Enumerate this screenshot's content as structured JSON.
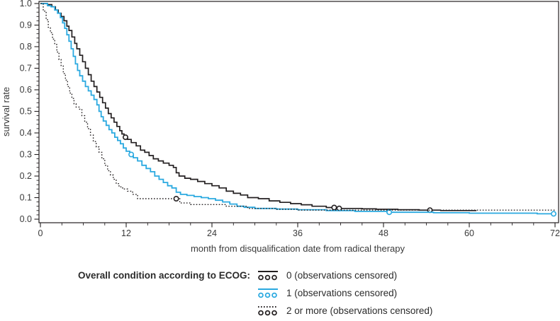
{
  "chart_data": {
    "type": "line",
    "subtype": "kaplan-meier-step",
    "title": "",
    "xlabel": "month from disqualification date from radical therapy",
    "ylabel": "survival rate",
    "xlim": [
      0,
      72
    ],
    "ylim": [
      0.0,
      1.0
    ],
    "x_ticks": [
      0,
      12,
      24,
      36,
      48,
      60,
      72
    ],
    "x_minor_step": 3,
    "y_ticks": [
      "1.0",
      "0.9",
      "0.8",
      "0.7",
      "0.6",
      "0.5",
      "0.4",
      "0.3",
      "0.2",
      "0.1",
      "0.0"
    ],
    "y_minor_step": 0.02,
    "grid": false,
    "legend_position": "bottom",
    "axis_color": "#231f20",
    "series": [
      {
        "id": "ecog-0",
        "name": "0",
        "color": "#231f20",
        "dash": "solid",
        "width": 1.7,
        "points": [
          [
            0,
            1.0
          ],
          [
            1.0,
            0.995
          ],
          [
            1.6,
            0.985
          ],
          [
            2.1,
            0.97
          ],
          [
            2.5,
            0.955
          ],
          [
            2.9,
            0.94
          ],
          [
            3.3,
            0.92
          ],
          [
            3.7,
            0.895
          ],
          [
            4.0,
            0.875
          ],
          [
            4.4,
            0.845
          ],
          [
            4.8,
            0.815
          ],
          [
            5.1,
            0.79
          ],
          [
            5.5,
            0.76
          ],
          [
            5.9,
            0.73
          ],
          [
            6.3,
            0.7
          ],
          [
            6.7,
            0.67
          ],
          [
            7.1,
            0.64
          ],
          [
            7.5,
            0.615
          ],
          [
            7.9,
            0.59
          ],
          [
            8.3,
            0.565
          ],
          [
            8.7,
            0.54
          ],
          [
            9.1,
            0.515
          ],
          [
            9.5,
            0.49
          ],
          [
            9.9,
            0.47
          ],
          [
            10.3,
            0.45
          ],
          [
            10.7,
            0.43
          ],
          [
            11.1,
            0.41
          ],
          [
            11.4,
            0.395
          ],
          [
            11.7,
            0.38
          ],
          [
            12.2,
            0.37
          ],
          [
            12.7,
            0.355
          ],
          [
            13.4,
            0.34
          ],
          [
            14.0,
            0.32
          ],
          [
            14.6,
            0.31
          ],
          [
            15.2,
            0.295
          ],
          [
            15.8,
            0.28
          ],
          [
            16.5,
            0.27
          ],
          [
            17.2,
            0.26
          ],
          [
            18.0,
            0.25
          ],
          [
            18.6,
            0.24
          ],
          [
            19.0,
            0.215
          ],
          [
            19.4,
            0.2
          ],
          [
            20.2,
            0.19
          ],
          [
            21.0,
            0.185
          ],
          [
            22.0,
            0.175
          ],
          [
            23.0,
            0.165
          ],
          [
            24.0,
            0.155
          ],
          [
            25.0,
            0.145
          ],
          [
            26.0,
            0.13
          ],
          [
            27.0,
            0.12
          ],
          [
            28.0,
            0.112
          ],
          [
            29.0,
            0.1
          ],
          [
            30.5,
            0.095
          ],
          [
            32.0,
            0.085
          ],
          [
            33.5,
            0.078
          ],
          [
            35.0,
            0.072
          ],
          [
            36.5,
            0.067
          ],
          [
            38.0,
            0.06
          ],
          [
            40.0,
            0.054
          ],
          [
            41.5,
            0.05
          ],
          [
            45.0,
            0.048
          ],
          [
            47.0,
            0.046
          ],
          [
            50.0,
            0.044
          ],
          [
            53.0,
            0.042
          ],
          [
            56.0,
            0.04
          ],
          [
            61.0,
            0.04
          ]
        ],
        "censored": [
          [
            11.9,
            0.38
          ],
          [
            41.1,
            0.054
          ],
          [
            41.8,
            0.05
          ],
          [
            54.5,
            0.042
          ]
        ]
      },
      {
        "id": "ecog-1",
        "name": "1",
        "color": "#2aa9e0",
        "dash": "solid",
        "width": 1.8,
        "points": [
          [
            0,
            1.0
          ],
          [
            1.0,
            0.99
          ],
          [
            1.5,
            0.985
          ],
          [
            2.0,
            0.97
          ],
          [
            2.4,
            0.955
          ],
          [
            2.8,
            0.935
          ],
          [
            3.1,
            0.91
          ],
          [
            3.4,
            0.885
          ],
          [
            3.7,
            0.855
          ],
          [
            4.0,
            0.825
          ],
          [
            4.3,
            0.79
          ],
          [
            4.6,
            0.755
          ],
          [
            4.9,
            0.72
          ],
          [
            5.2,
            0.69
          ],
          [
            5.5,
            0.665
          ],
          [
            5.9,
            0.64
          ],
          [
            6.3,
            0.615
          ],
          [
            6.7,
            0.595
          ],
          [
            7.1,
            0.575
          ],
          [
            7.5,
            0.555
          ],
          [
            7.9,
            0.53
          ],
          [
            8.2,
            0.5
          ],
          [
            8.5,
            0.475
          ],
          [
            8.8,
            0.455
          ],
          [
            9.2,
            0.435
          ],
          [
            9.6,
            0.415
          ],
          [
            10.0,
            0.4
          ],
          [
            10.4,
            0.38
          ],
          [
            10.8,
            0.365
          ],
          [
            11.2,
            0.35
          ],
          [
            11.6,
            0.33
          ],
          [
            12.0,
            0.315
          ],
          [
            12.5,
            0.3
          ],
          [
            13.0,
            0.285
          ],
          [
            13.6,
            0.27
          ],
          [
            14.2,
            0.25
          ],
          [
            14.8,
            0.235
          ],
          [
            15.4,
            0.22
          ],
          [
            16.0,
            0.2
          ],
          [
            16.6,
            0.185
          ],
          [
            17.2,
            0.17
          ],
          [
            17.8,
            0.155
          ],
          [
            18.4,
            0.145
          ],
          [
            19.0,
            0.125
          ],
          [
            19.6,
            0.115
          ],
          [
            20.5,
            0.11
          ],
          [
            21.5,
            0.105
          ],
          [
            22.5,
            0.1
          ],
          [
            23.5,
            0.095
          ],
          [
            24.5,
            0.088
          ],
          [
            25.5,
            0.08
          ],
          [
            26.5,
            0.07
          ],
          [
            27.5,
            0.06
          ],
          [
            28.5,
            0.055
          ],
          [
            30.0,
            0.05
          ],
          [
            33.0,
            0.047
          ],
          [
            36.0,
            0.044
          ],
          [
            40.0,
            0.04
          ],
          [
            44.0,
            0.036
          ],
          [
            48.5,
            0.032
          ],
          [
            55.0,
            0.03
          ],
          [
            60.0,
            0.028
          ],
          [
            69.5,
            0.025
          ],
          [
            72,
            0.025
          ]
        ],
        "censored": [
          [
            12.7,
            0.3
          ],
          [
            48.8,
            0.032
          ],
          [
            71.8,
            0.025
          ]
        ]
      },
      {
        "id": "ecog-2-or-more",
        "name": "2 or more",
        "color": "#231f20",
        "dash": "dotted",
        "width": 1.4,
        "points": [
          [
            0,
            1.0
          ],
          [
            0.4,
            0.965
          ],
          [
            0.8,
            0.925
          ],
          [
            1.1,
            0.89
          ],
          [
            1.4,
            0.865
          ],
          [
            1.7,
            0.835
          ],
          [
            2.0,
            0.81
          ],
          [
            2.3,
            0.775
          ],
          [
            2.6,
            0.74
          ],
          [
            2.9,
            0.71
          ],
          [
            3.2,
            0.675
          ],
          [
            3.5,
            0.645
          ],
          [
            3.8,
            0.615
          ],
          [
            4.1,
            0.585
          ],
          [
            4.4,
            0.56
          ],
          [
            4.7,
            0.535
          ],
          [
            5.0,
            0.52
          ],
          [
            5.4,
            0.51
          ],
          [
            5.8,
            0.48
          ],
          [
            6.2,
            0.45
          ],
          [
            6.6,
            0.42
          ],
          [
            7.0,
            0.39
          ],
          [
            7.4,
            0.36
          ],
          [
            7.8,
            0.335
          ],
          [
            8.2,
            0.31
          ],
          [
            8.6,
            0.28
          ],
          [
            9.0,
            0.25
          ],
          [
            9.4,
            0.225
          ],
          [
            9.8,
            0.205
          ],
          [
            10.2,
            0.185
          ],
          [
            10.6,
            0.165
          ],
          [
            11.0,
            0.15
          ],
          [
            11.5,
            0.14
          ],
          [
            12.2,
            0.13
          ],
          [
            12.9,
            0.115
          ],
          [
            13.6,
            0.095
          ],
          [
            19.2,
            0.095
          ],
          [
            19.5,
            0.075
          ],
          [
            21.0,
            0.068
          ],
          [
            26.0,
            0.06
          ],
          [
            29.0,
            0.05
          ],
          [
            33.0,
            0.046
          ],
          [
            36.0,
            0.042
          ],
          [
            72,
            0.042
          ]
        ],
        "censored": [
          [
            19.0,
            0.095
          ]
        ]
      }
    ]
  },
  "legend": {
    "title": "Overall condition according to ECOG:",
    "entries": [
      {
        "label": "0 (observations censored)",
        "series": 0
      },
      {
        "label": "1 (observations censored)",
        "series": 1
      },
      {
        "label": "2 or more (observations censored)",
        "series": 2
      }
    ]
  },
  "colors": {
    "background": "#ffffff",
    "axis": "#231f20",
    "text": "#3a3a3a",
    "ecog0_curve": "#231f20",
    "ecog1_curve": "#2aa9e0",
    "ecog2_curve": "#231f20"
  }
}
